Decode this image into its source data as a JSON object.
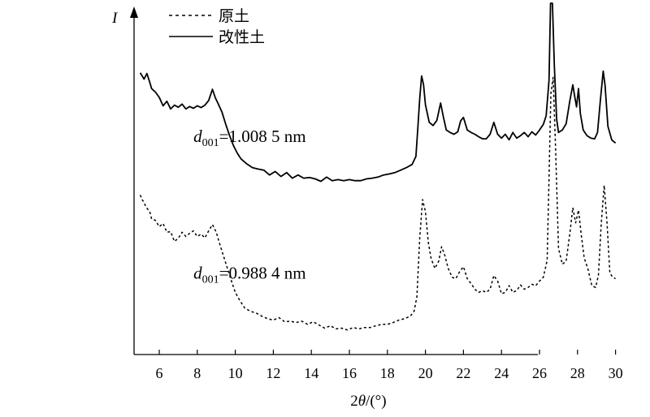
{
  "chart_data": {
    "type": "line",
    "ylabel": "I",
    "xlabel_parts": [
      "2",
      "θ",
      "/(°)"
    ],
    "xlim": [
      4.5,
      30.3
    ],
    "ylim": [
      0,
      100
    ],
    "x_ticks": [
      6,
      8,
      10,
      12,
      14,
      16,
      18,
      20,
      22,
      24,
      26,
      28,
      30
    ],
    "grid": false,
    "legend_position": "top-left",
    "series": [
      {
        "name": "改性土",
        "style": "solid",
        "color": "#000000",
        "points": [
          [
            5.0,
            80.2
          ],
          [
            5.2,
            78.4
          ],
          [
            5.35,
            80.0
          ],
          [
            5.5,
            77.5
          ],
          [
            5.6,
            75.7
          ],
          [
            5.8,
            74.7
          ],
          [
            6.0,
            73.2
          ],
          [
            6.2,
            70.8
          ],
          [
            6.4,
            72.1
          ],
          [
            6.6,
            69.9
          ],
          [
            6.8,
            71.0
          ],
          [
            7.0,
            70.4
          ],
          [
            7.2,
            71.3
          ],
          [
            7.4,
            69.9
          ],
          [
            7.6,
            70.6
          ],
          [
            7.8,
            70.1
          ],
          [
            8.0,
            70.8
          ],
          [
            8.2,
            70.3
          ],
          [
            8.4,
            71.0
          ],
          [
            8.6,
            72.3
          ],
          [
            8.8,
            75.5
          ],
          [
            8.95,
            73.1
          ],
          [
            9.1,
            71.4
          ],
          [
            9.3,
            69.0
          ],
          [
            9.5,
            65.5
          ],
          [
            9.7,
            62.3
          ],
          [
            9.9,
            59.5
          ],
          [
            10.1,
            57.4
          ],
          [
            10.3,
            55.7
          ],
          [
            10.6,
            54.3
          ],
          [
            10.9,
            53.2
          ],
          [
            11.2,
            52.8
          ],
          [
            11.5,
            52.5
          ],
          [
            11.8,
            51.1
          ],
          [
            12.1,
            52.1
          ],
          [
            12.4,
            50.7
          ],
          [
            12.7,
            51.8
          ],
          [
            13.0,
            50.2
          ],
          [
            13.3,
            51.1
          ],
          [
            13.6,
            50.2
          ],
          [
            13.9,
            50.4
          ],
          [
            14.2,
            50.0
          ],
          [
            14.5,
            49.3
          ],
          [
            14.8,
            50.5
          ],
          [
            15.1,
            49.5
          ],
          [
            15.4,
            49.8
          ],
          [
            15.7,
            49.5
          ],
          [
            16.0,
            49.8
          ],
          [
            16.3,
            49.5
          ],
          [
            16.6,
            49.5
          ],
          [
            16.9,
            50.0
          ],
          [
            17.2,
            50.2
          ],
          [
            17.5,
            50.5
          ],
          [
            17.8,
            51.1
          ],
          [
            18.1,
            51.4
          ],
          [
            18.4,
            51.8
          ],
          [
            18.7,
            52.5
          ],
          [
            19.0,
            53.2
          ],
          [
            19.3,
            54.1
          ],
          [
            19.5,
            56.4
          ],
          [
            19.6,
            64.3
          ],
          [
            19.7,
            72.9
          ],
          [
            19.8,
            79.3
          ],
          [
            19.9,
            76.8
          ],
          [
            20.0,
            71.1
          ],
          [
            20.2,
            66.1
          ],
          [
            20.4,
            65.2
          ],
          [
            20.6,
            66.6
          ],
          [
            20.8,
            71.6
          ],
          [
            20.95,
            67.5
          ],
          [
            21.1,
            63.9
          ],
          [
            21.3,
            63.2
          ],
          [
            21.5,
            62.7
          ],
          [
            21.7,
            63.4
          ],
          [
            21.85,
            66.5
          ],
          [
            22.0,
            67.5
          ],
          [
            22.2,
            63.9
          ],
          [
            22.4,
            63.2
          ],
          [
            22.6,
            62.7
          ],
          [
            22.8,
            62.0
          ],
          [
            23.0,
            61.4
          ],
          [
            23.2,
            61.4
          ],
          [
            23.4,
            62.7
          ],
          [
            23.6,
            66.1
          ],
          [
            23.8,
            62.7
          ],
          [
            24.0,
            61.6
          ],
          [
            24.2,
            62.7
          ],
          [
            24.4,
            61.1
          ],
          [
            24.6,
            63.2
          ],
          [
            24.8,
            61.6
          ],
          [
            25.0,
            62.3
          ],
          [
            25.2,
            63.2
          ],
          [
            25.4,
            62.0
          ],
          [
            25.6,
            63.4
          ],
          [
            25.8,
            62.5
          ],
          [
            26.0,
            63.9
          ],
          [
            26.2,
            65.5
          ],
          [
            26.35,
            68.0
          ],
          [
            26.5,
            78.0
          ],
          [
            26.58,
            100.0
          ],
          [
            26.68,
            100.0
          ],
          [
            26.78,
            82.0
          ],
          [
            26.9,
            67.0
          ],
          [
            27.0,
            63.2
          ],
          [
            27.2,
            63.9
          ],
          [
            27.4,
            65.7
          ],
          [
            27.6,
            72.3
          ],
          [
            27.75,
            76.8
          ],
          [
            27.85,
            73.5
          ],
          [
            27.95,
            70.5
          ],
          [
            28.05,
            75.7
          ],
          [
            28.15,
            68.6
          ],
          [
            28.3,
            63.9
          ],
          [
            28.5,
            62.3
          ],
          [
            28.7,
            61.6
          ],
          [
            28.9,
            61.4
          ],
          [
            29.05,
            63.2
          ],
          [
            29.2,
            72.3
          ],
          [
            29.35,
            80.7
          ],
          [
            29.45,
            76.6
          ],
          [
            29.6,
            65.0
          ],
          [
            29.8,
            61.1
          ],
          [
            30.0,
            60.2
          ]
        ]
      },
      {
        "name": "原土",
        "style": "dashed",
        "color": "#000000",
        "points": [
          [
            5.0,
            45.4
          ],
          [
            5.1,
            44.1
          ],
          [
            5.2,
            43.3
          ],
          [
            5.3,
            42.0
          ],
          [
            5.5,
            40.7
          ],
          [
            5.6,
            38.6
          ],
          [
            5.8,
            38.2
          ],
          [
            6.0,
            36.4
          ],
          [
            6.2,
            37.3
          ],
          [
            6.4,
            34.8
          ],
          [
            6.6,
            35.0
          ],
          [
            6.8,
            32.2
          ],
          [
            7.0,
            33.1
          ],
          [
            7.2,
            34.8
          ],
          [
            7.4,
            33.6
          ],
          [
            7.6,
            34.5
          ],
          [
            7.8,
            35.2
          ],
          [
            8.0,
            33.6
          ],
          [
            8.2,
            34.3
          ],
          [
            8.4,
            33.2
          ],
          [
            8.6,
            35.2
          ],
          [
            8.8,
            37.0
          ],
          [
            9.0,
            34.8
          ],
          [
            9.2,
            31.1
          ],
          [
            9.4,
            27.7
          ],
          [
            9.6,
            24.3
          ],
          [
            9.8,
            20.9
          ],
          [
            10.0,
            17.7
          ],
          [
            10.2,
            15.7
          ],
          [
            10.5,
            13.2
          ],
          [
            10.8,
            12.3
          ],
          [
            11.1,
            11.8
          ],
          [
            11.4,
            10.9
          ],
          [
            11.7,
            10.2
          ],
          [
            12.0,
            9.8
          ],
          [
            12.3,
            10.5
          ],
          [
            12.6,
            9.3
          ],
          [
            12.9,
            9.5
          ],
          [
            13.2,
            9.1
          ],
          [
            13.5,
            9.5
          ],
          [
            13.8,
            8.6
          ],
          [
            14.1,
            9.3
          ],
          [
            14.4,
            8.4
          ],
          [
            14.7,
            7.5
          ],
          [
            15.0,
            8.2
          ],
          [
            15.3,
            7.3
          ],
          [
            15.6,
            7.5
          ],
          [
            15.9,
            7.0
          ],
          [
            16.2,
            7.7
          ],
          [
            16.5,
            7.3
          ],
          [
            16.8,
            7.7
          ],
          [
            17.1,
            7.7
          ],
          [
            17.4,
            8.2
          ],
          [
            17.7,
            8.6
          ],
          [
            18.0,
            8.6
          ],
          [
            18.3,
            9.1
          ],
          [
            18.6,
            9.8
          ],
          [
            18.9,
            10.2
          ],
          [
            19.2,
            10.9
          ],
          [
            19.4,
            12.3
          ],
          [
            19.55,
            16.4
          ],
          [
            19.7,
            33.2
          ],
          [
            19.85,
            44.1
          ],
          [
            20.0,
            40.7
          ],
          [
            20.15,
            32.0
          ],
          [
            20.3,
            27.3
          ],
          [
            20.5,
            24.5
          ],
          [
            20.7,
            26.6
          ],
          [
            20.85,
            30.7
          ],
          [
            21.0,
            28.6
          ],
          [
            21.2,
            24.5
          ],
          [
            21.4,
            22.0
          ],
          [
            21.6,
            21.6
          ],
          [
            21.8,
            23.6
          ],
          [
            22.0,
            25.0
          ],
          [
            22.2,
            21.6
          ],
          [
            22.4,
            20.2
          ],
          [
            22.6,
            18.6
          ],
          [
            22.8,
            17.7
          ],
          [
            23.0,
            18.2
          ],
          [
            23.2,
            17.7
          ],
          [
            23.4,
            18.6
          ],
          [
            23.6,
            22.5
          ],
          [
            23.8,
            20.9
          ],
          [
            24.0,
            17.3
          ],
          [
            24.2,
            17.7
          ],
          [
            24.4,
            19.6
          ],
          [
            24.6,
            17.7
          ],
          [
            24.8,
            18.2
          ],
          [
            25.0,
            19.8
          ],
          [
            25.2,
            18.6
          ],
          [
            25.4,
            19.1
          ],
          [
            25.6,
            20.0
          ],
          [
            25.8,
            19.6
          ],
          [
            26.0,
            20.9
          ],
          [
            26.2,
            22.0
          ],
          [
            26.4,
            26.8
          ],
          [
            26.5,
            50.0
          ],
          [
            26.6,
            74.3
          ],
          [
            26.72,
            78.9
          ],
          [
            26.85,
            58.0
          ],
          [
            27.0,
            30.2
          ],
          [
            27.2,
            25.7
          ],
          [
            27.4,
            26.6
          ],
          [
            27.6,
            34.5
          ],
          [
            27.75,
            41.8
          ],
          [
            27.9,
            37.5
          ],
          [
            28.05,
            41.1
          ],
          [
            28.2,
            33.9
          ],
          [
            28.35,
            27.5
          ],
          [
            28.55,
            24.3
          ],
          [
            28.75,
            19.6
          ],
          [
            28.95,
            19.1
          ],
          [
            29.1,
            22.5
          ],
          [
            29.25,
            37.3
          ],
          [
            29.4,
            48.2
          ],
          [
            29.55,
            37.5
          ],
          [
            29.7,
            23.2
          ],
          [
            29.85,
            22.0
          ],
          [
            30.0,
            21.6
          ]
        ]
      }
    ],
    "annotations": [
      {
        "prefix": "d",
        "subscript": "001",
        "value": "=1.008 5 nm",
        "x": 7.8,
        "y": 60.5
      },
      {
        "prefix": "d",
        "subscript": "001",
        "value": "=0.988 4 nm",
        "x": 7.8,
        "y": 21.6
      }
    ]
  }
}
